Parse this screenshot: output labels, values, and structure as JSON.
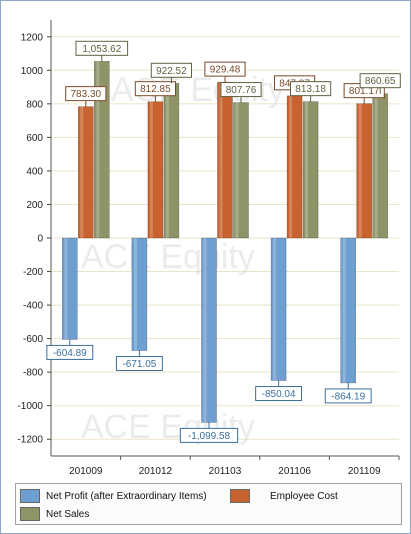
{
  "chart_data": {
    "type": "bar",
    "categories": [
      "201009",
      "201012",
      "201103",
      "201106",
      "201109"
    ],
    "series": [
      {
        "name": "Net Profit (after Extraordinary Items)",
        "values": [
          -604.89,
          -671.05,
          -1099.58,
          -850.04,
          -864.19
        ],
        "labels": [
          "-604.89",
          "-671.05",
          "-1,099.58",
          "-850.04",
          "-864.19"
        ],
        "color": "#6f9fd0",
        "label_color": "#3a6e9e"
      },
      {
        "name": "Employee Cost",
        "values": [
          783.3,
          812.85,
          929.48,
          847.87,
          801.17
        ],
        "labels": [
          "783.30",
          "812.85",
          "929.48",
          "847.87",
          "801.17"
        ],
        "color": "#c8622e",
        "label_color": "#7a4a2a"
      },
      {
        "name": "Net Sales",
        "values": [
          1053.62,
          922.52,
          807.76,
          813.18,
          860.65
        ],
        "labels": [
          "1,053.62",
          "922.52",
          "807.76",
          "813.18",
          "860.65"
        ],
        "color": "#8e9468",
        "label_color": "#5f6240"
      }
    ],
    "ylim": [
      -1300,
      1300
    ],
    "yticks": [
      1200,
      1000,
      800,
      600,
      400,
      200,
      0,
      -200,
      -400,
      -600,
      -800,
      -1000,
      -1200
    ],
    "ytick_labels": [
      "1200",
      "1000",
      "800",
      "600",
      "400",
      "200",
      "0",
      "-200",
      "-400",
      "-600",
      "-800",
      "-1000",
      "-1200"
    ],
    "grid": true,
    "legend_position": "bottom",
    "watermark": "ACE Equity"
  }
}
